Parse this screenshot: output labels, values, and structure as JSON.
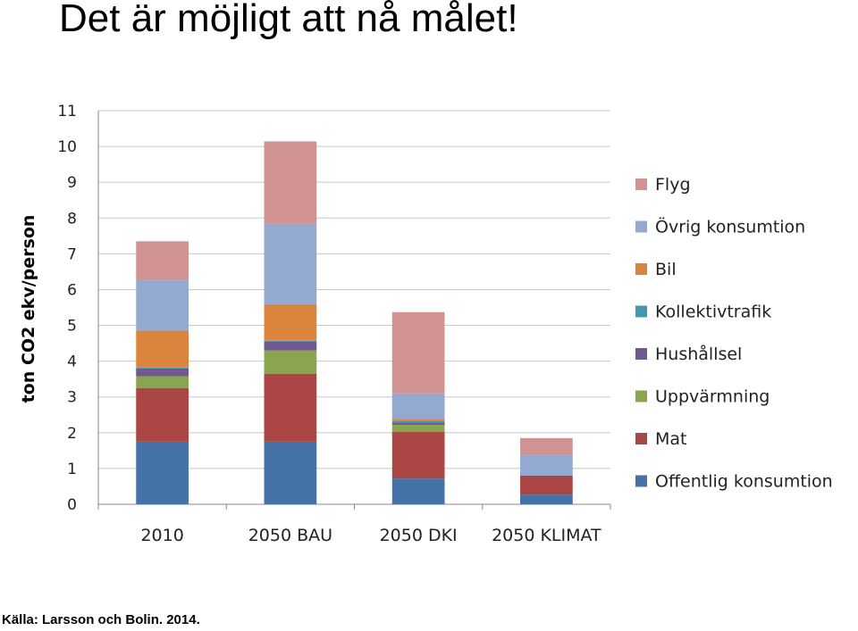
{
  "slide": {
    "title": "Det är möjligt att nå målet!",
    "source": "Källa: Larsson och Bolin. 2014."
  },
  "chart_data": {
    "type": "bar",
    "stacked": true,
    "categories": [
      "2010",
      "2050 BAU",
      "2050 DKI",
      "2050 KLIMAT"
    ],
    "ylabel": "ton CO2 ekv/person",
    "ylim": [
      0,
      11
    ],
    "yticks": [
      0,
      1,
      2,
      3,
      4,
      5,
      6,
      7,
      8,
      9,
      10,
      11
    ],
    "grid": true,
    "legend_position": "right",
    "series": [
      {
        "name": "Offentlig konsumtion",
        "color": "#4572A7",
        "values": [
          1.75,
          1.75,
          0.72,
          0.27
        ]
      },
      {
        "name": "Mat",
        "color": "#AA4643",
        "values": [
          1.5,
          1.9,
          1.3,
          0.53
        ]
      },
      {
        "name": "Uppvärmning",
        "color": "#89A54E",
        "values": [
          0.33,
          0.65,
          0.2,
          0.0
        ]
      },
      {
        "name": "Hushållsel",
        "color": "#71588F",
        "values": [
          0.22,
          0.25,
          0.05,
          0.0
        ]
      },
      {
        "name": "Kollektivtrafik",
        "color": "#4198AF",
        "values": [
          0.02,
          0.02,
          0.05,
          0.0
        ]
      },
      {
        "name": "Bil",
        "color": "#DB843D",
        "values": [
          1.03,
          1.02,
          0.05,
          0.0
        ]
      },
      {
        "name": "Övrig konsumtion",
        "color": "#93A9CF",
        "values": [
          1.42,
          2.25,
          0.73,
          0.57
        ]
      },
      {
        "name": "Flyg",
        "color": "#D19392",
        "values": [
          1.08,
          2.3,
          2.27,
          0.48
        ]
      }
    ]
  }
}
